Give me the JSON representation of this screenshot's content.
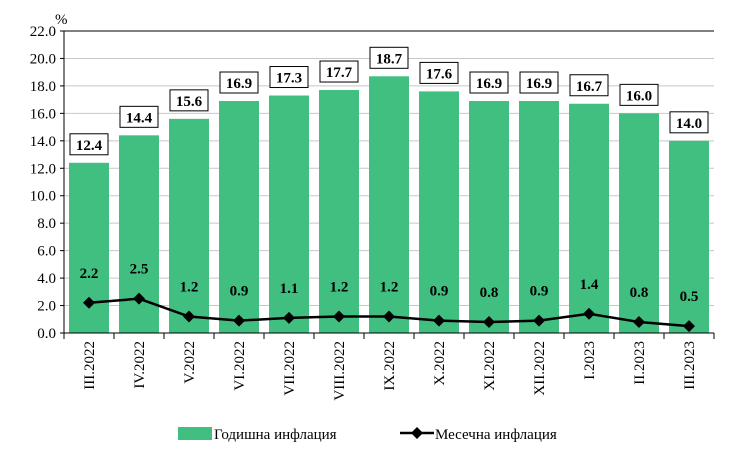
{
  "chart_data": {
    "type": "bar+line",
    "ylabel": "%",
    "ylim": [
      0,
      22
    ],
    "ytick_step": 2,
    "yticks": [
      "0.0",
      "2.0",
      "4.0",
      "6.0",
      "8.0",
      "10.0",
      "12.0",
      "14.0",
      "16.0",
      "18.0",
      "20.0",
      "22.0"
    ],
    "grid": true,
    "legend_position": "bottom",
    "categories": [
      "III.2022",
      "IV.2022",
      "V.2022",
      "VI.2022",
      "VII.2022",
      "VIII.2022",
      "IX.2022",
      "X.2022",
      "XI.2022",
      "XII.2022",
      "I.2023",
      "II.2023",
      "III.2023"
    ],
    "series": [
      {
        "name": "Годишна инфлация",
        "type": "bar",
        "color": "#40bf80",
        "values": [
          12.4,
          14.4,
          15.6,
          16.9,
          17.3,
          17.7,
          18.7,
          17.6,
          16.9,
          16.9,
          16.7,
          16.0,
          14.0
        ],
        "labels": [
          "12.4",
          "14.4",
          "15.6",
          "16.9",
          "17.3",
          "17.7",
          "18.7",
          "17.6",
          "16.9",
          "16.9",
          "16.7",
          "16.0",
          "14.0"
        ]
      },
      {
        "name": "Месечна инфлация",
        "type": "line",
        "color": "#000000",
        "values": [
          2.2,
          2.5,
          1.2,
          0.9,
          1.1,
          1.2,
          1.2,
          0.9,
          0.8,
          0.9,
          1.4,
          0.8,
          0.5
        ],
        "labels": [
          "2.2",
          "2.5",
          "1.2",
          "0.9",
          "1.1",
          "1.2",
          "1.2",
          "0.9",
          "0.8",
          "0.9",
          "1.4",
          "0.8",
          "0.5"
        ]
      }
    ]
  }
}
